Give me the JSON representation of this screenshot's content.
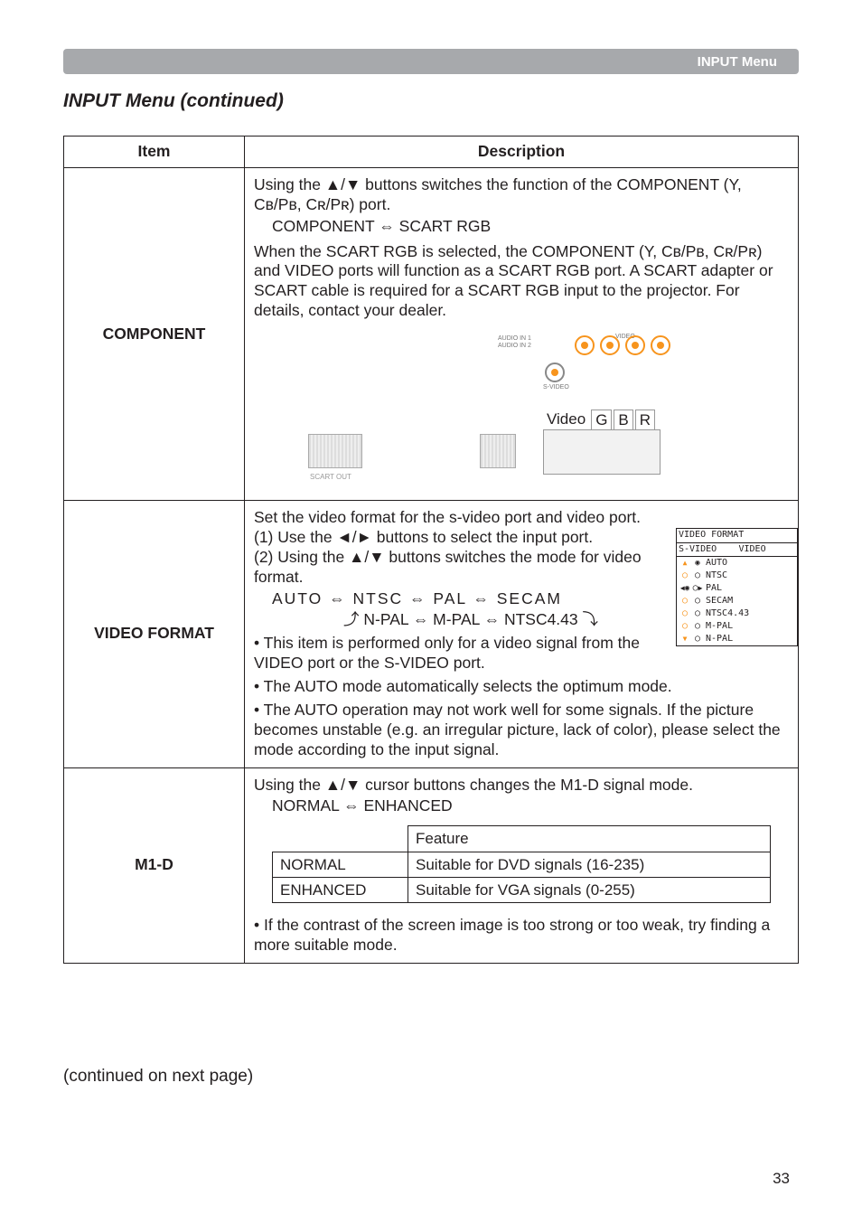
{
  "header": {
    "menu_label": "INPUT Menu"
  },
  "section_title": "INPUT Menu (continued)",
  "table": {
    "head_item": "Item",
    "head_desc": "Description"
  },
  "component": {
    "item_label": "COMPONENT",
    "line1": "Using the ▲/▼ buttons switches the function of the COMPONENT (Y, Cʙ/Pʙ, Cʀ/Pʀ) port.",
    "line2": "COMPONENT ⇔ SCART RGB",
    "line3": "When the SCART RGB is selected, the COMPONENT (Y, Cʙ/Pʙ, Cʀ/Pʀ) and VIDEO ports will function as a SCART RGB port. A SCART adapter or SCART cable is required for a SCART RGB input to the projector. For details, contact your dealer.",
    "diagram": {
      "labels": {
        "audio_in1": "AUDIO IN 1",
        "audio_in2": "AUDIO IN 2",
        "video": "VIDEO",
        "s_video": "S-VIDEO",
        "scart_out": "SCART OUT",
        "video_wd": "Video",
        "G": "G",
        "B": "B",
        "R": "R"
      },
      "rca_color": "#f7941d"
    }
  },
  "video_format": {
    "item_label": "VIDEO FORMAT",
    "line1": "Set the video format for the s-video port and video port.",
    "line2": "(1) Use the ◄/► buttons to select the input port.",
    "line3": "(2) Using the ▲/▼ buttons switches the mode for video format.",
    "line4": "AUTO  ⇔  NTSC  ⇔  PAL  ⇔  SECAM",
    "line5": "⤴ N-PAL ⇔ M-PAL ⇔ NTSC4.43 ⤵",
    "bullet1": "• This item is performed only for a video signal from the VIDEO port or the S-VIDEO port.",
    "bullet2": "• The AUTO mode automatically selects the optimum mode.",
    "bullet3": "• The AUTO operation may not work well for some signals. If the picture becomes unstable (e.g. an irregular picture, lack of color), please select the mode according to the input signal.",
    "osd": {
      "title": "VIDEO FORMAT",
      "col_l": "S-VIDEO",
      "col_r": "VIDEO",
      "rows": [
        {
          "l_icon": "up",
          "r_icon": "dot",
          "label": "AUTO"
        },
        {
          "l_icon": "o_or",
          "r_icon": "open",
          "label": "NTSC"
        },
        {
          "l_icon": "sel",
          "r_icon": "o_ar",
          "label": "PAL"
        },
        {
          "l_icon": "o_or",
          "r_icon": "open",
          "label": "SECAM"
        },
        {
          "l_icon": "o_or",
          "r_icon": "open",
          "label": "NTSC4.43"
        },
        {
          "l_icon": "o_or",
          "r_icon": "open",
          "label": "M-PAL"
        },
        {
          "l_icon": "dn",
          "r_icon": "open",
          "label": "N-PAL"
        }
      ]
    }
  },
  "m1d": {
    "item_label": "M1-D",
    "line1": "Using the ▲/▼ cursor buttons changes the M1-D signal mode.",
    "line2": "NORMAL ⇔ ENHANCED",
    "sub_head": "Feature",
    "rows": [
      {
        "mode": "NORMAL",
        "feature": "Suitable for DVD signals (16-235)"
      },
      {
        "mode": "ENHANCED",
        "feature": "Suitable for VGA signals (0-255)"
      }
    ],
    "bullet": "• If the contrast of the screen image is too strong or too weak, try finding a more suitable mode."
  },
  "continued": "(continued on next page)",
  "page_number": "33",
  "colors": {
    "header_bg": "#a7a9ac",
    "header_text": "#ffffff",
    "text": "#231f20",
    "accent_orange": "#f7941d"
  }
}
